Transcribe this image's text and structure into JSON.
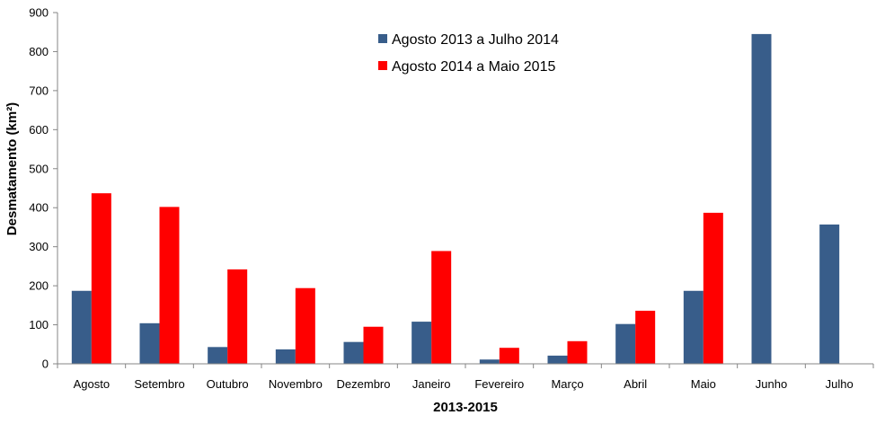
{
  "chart_data": {
    "type": "bar",
    "title": "",
    "xlabel": "2013-2015",
    "ylabel": "Desmatamento (km²)",
    "ylim": [
      0,
      900
    ],
    "yticks": [
      0,
      100,
      200,
      300,
      400,
      500,
      600,
      700,
      800,
      900
    ],
    "grid": false,
    "legend_position": "top-center",
    "categories": [
      "Agosto",
      "Setembro",
      "Outubro",
      "Novembro",
      "Dezembro",
      "Janeiro",
      "Fevereiro",
      "Março",
      "Abril",
      "Maio",
      "Junho",
      "Julho"
    ],
    "series": [
      {
        "name": "Agosto 2013 a Julho 2014",
        "color": "#385d8a",
        "values": [
          187,
          104,
          43,
          37,
          56,
          108,
          11,
          21,
          102,
          187,
          845,
          357
        ]
      },
      {
        "name": "Agosto 2014 a Maio 2015",
        "color": "#ff0000",
        "values": [
          437,
          402,
          242,
          194,
          95,
          289,
          41,
          58,
          136,
          387,
          null,
          null
        ]
      }
    ]
  }
}
